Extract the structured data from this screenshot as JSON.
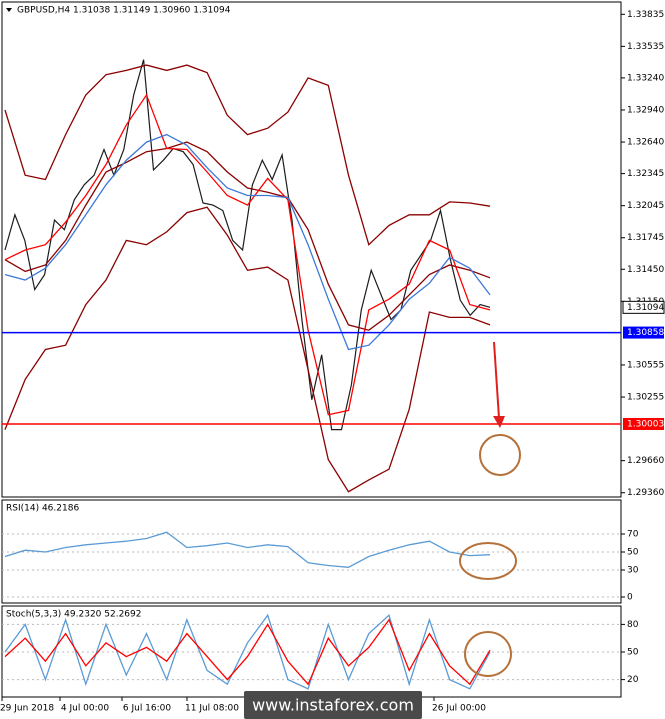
{
  "chart_data": [
    {
      "type": "line",
      "title": "GBPUSD,H4  1.31038 1.31149 1.30960 1.31094",
      "ylim": [
        1.2932,
        1.3395
      ],
      "yticks": [
        1.33835,
        1.33535,
        {
          "value": 1.3324,
          "label": "1.33240"
        },
        {
          "value": 1.3294,
          "label": "1.32940"
        },
        {
          "value": 1.3264,
          "label": "1.32640"
        },
        1.32345,
        1.32045,
        1.31745,
        {
          "value": 1.3145,
          "label": "1.31450"
        },
        {
          "value": 1.3115,
          "label": "1.31150"
        },
        1.30555,
        1.30255,
        {
          "value": 1.2966,
          "label": "1.29660"
        },
        {
          "value": 1.2936,
          "label": "1.29360"
        }
      ],
      "last_price": 1.31094,
      "levels": [
        {
          "value": 1.30858,
          "color": "#0000ff"
        },
        {
          "value": 1.30003,
          "color": "#ff0000"
        }
      ],
      "x_labels": [
        "29 Jun 2018",
        "4 Jul 00:00",
        "6 Jul 16:00",
        "11 Jul 08:00",
        "26 Jul 00:00"
      ],
      "watermark": "www.instaforex.com",
      "series": [
        {
          "color": "#1c1c1c",
          "values": [
            1.3163,
            1.3196,
            1.3172,
            1.3126,
            1.314,
            1.3191,
            1.3182,
            1.321,
            1.3224,
            1.3233,
            1.3257,
            1.3233,
            1.3257,
            1.3308,
            1.3341,
            1.3238,
            1.3247,
            1.3258,
            1.3255,
            1.3243,
            1.3207,
            1.3205,
            1.32,
            1.3172,
            1.3163,
            1.3224,
            1.3247,
            1.3229,
            1.3252,
            1.3191,
            1.3098,
            1.3023,
            1.3065,
            1.2995,
            1.2995,
            1.3037,
            1.3107,
            1.3144,
            1.3121,
            1.3098,
            1.3107,
            1.3144,
            1.3158,
            1.3172,
            1.32,
            1.3154,
            1.3116,
            1.3102,
            1.3112,
            1.31094
          ]
        },
        {
          "color": "#8b0000",
          "values": [
            1.3294,
            1.3233,
            1.3229,
            1.3271,
            1.3308,
            1.3327,
            1.3331,
            1.3336,
            1.3331,
            1.3336,
            1.3329,
            1.3289,
            1.3271,
            1.3277,
            1.3292,
            1.3324,
            1.3317,
            1.3233,
            1.3168,
            1.3186,
            1.3196,
            1.3196,
            1.3208,
            1.3207,
            1.3204
          ]
        },
        {
          "color": "#8b0000",
          "values": [
            1.2995,
            1.3042,
            1.307,
            1.3074,
            1.3112,
            1.3135,
            1.3172,
            1.3168,
            1.318,
            1.3198,
            1.3203,
            1.3177,
            1.3144,
            1.3147,
            1.3135,
            1.3051,
            1.2967,
            1.2937,
            1.2948,
            1.2958,
            1.3014,
            1.3105,
            1.31,
            1.31,
            1.3093
          ]
        },
        {
          "color": "#8b0000",
          "values": [
            1.3154,
            1.3143,
            1.3149,
            1.3172,
            1.3205,
            1.3236,
            1.3245,
            1.3255,
            1.3258,
            1.3264,
            1.3255,
            1.3236,
            1.3221,
            1.3217,
            1.3212,
            1.3182,
            1.3131,
            1.3093,
            1.3088,
            1.3102,
            1.3121,
            1.314,
            1.3149,
            1.3144,
            1.3137
          ]
        },
        {
          "color": "#ff0000",
          "values": [
            1.3154,
            1.3163,
            1.3168,
            1.3189,
            1.3214,
            1.3243,
            1.328,
            1.3308,
            1.3258,
            1.3257,
            1.3236,
            1.3214,
            1.3205,
            1.323,
            1.321,
            1.3088,
            1.3009,
            1.3013,
            1.3107,
            1.3117,
            1.3131,
            1.3172,
            1.3163,
            1.3112,
            1.3107
          ]
        },
        {
          "color": "#3c78d8",
          "values": [
            1.314,
            1.3135,
            1.3146,
            1.3168,
            1.3196,
            1.3224,
            1.3247,
            1.3264,
            1.3271,
            1.3261,
            1.324,
            1.3221,
            1.3214,
            1.3214,
            1.3212,
            1.3168,
            1.3117,
            1.307,
            1.3074,
            1.3093,
            1.3117,
            1.3132,
            1.3156,
            1.3146,
            1.3121
          ]
        }
      ]
    },
    {
      "type": "line",
      "title": "RSI(14) 46.2186",
      "ylim": [
        0,
        100
      ],
      "yticks": [
        70,
        50,
        30,
        0
      ],
      "series": [
        {
          "color": "#5b9bd5",
          "values": [
            45,
            52,
            50,
            55,
            58,
            60,
            62,
            65,
            72,
            55,
            57,
            60,
            55,
            58,
            56,
            38,
            35,
            33,
            45,
            52,
            58,
            62,
            50,
            46,
            47
          ]
        }
      ]
    },
    {
      "type": "line",
      "title": "Stoch(5,3,3) 49.2320 52.2692",
      "ylim": [
        0,
        100
      ],
      "yticks": [
        80,
        50,
        20
      ],
      "series": [
        {
          "color": "#5b9bd5",
          "values": [
            50,
            80,
            20,
            85,
            15,
            80,
            25,
            70,
            20,
            85,
            30,
            15,
            60,
            90,
            20,
            10,
            80,
            20,
            70,
            90,
            15,
            85,
            20,
            10,
            50
          ]
        },
        {
          "color": "#ff0000",
          "values": [
            45,
            65,
            40,
            70,
            35,
            60,
            45,
            55,
            40,
            70,
            45,
            20,
            45,
            80,
            40,
            15,
            65,
            35,
            55,
            85,
            30,
            70,
            35,
            15,
            52
          ]
        }
      ]
    }
  ]
}
